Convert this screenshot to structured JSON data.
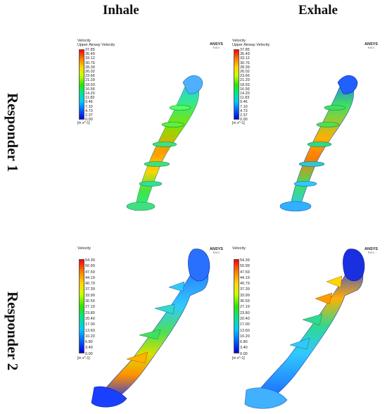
{
  "columns": {
    "left": "Inhale",
    "right": "Exhale"
  },
  "rows": {
    "top": "Responder 1",
    "bottom": "Responder 2"
  },
  "brand": {
    "name": "ANSYS",
    "version": "R15.0"
  },
  "responder1": {
    "legend_title": "Velocity",
    "legend_subtitle": "Upper Airway Velocity",
    "ticks": [
      "37.85",
      "35.49",
      "33.12",
      "30.76",
      "28.39",
      "26.02",
      "23.66",
      "21.29",
      "18.93",
      "16.56",
      "14.20",
      "11.83",
      "9.46",
      "7.10",
      "4.73",
      "2.37",
      "0.00"
    ],
    "unit": "[m s^-1]"
  },
  "responder2": {
    "legend_title": "Velocity",
    "ticks": [
      "54.39",
      "50.99",
      "47.59",
      "44.19",
      "40.79",
      "37.39",
      "33.99",
      "30.59",
      "27.19",
      "23.80",
      "20.40",
      "17.00",
      "13.60",
      "10.20",
      "6.80",
      "3.40",
      "0.00"
    ],
    "unit": "[m s^-1]"
  },
  "colors": {
    "colormap": [
      "#ff0000",
      "#ff7a00",
      "#ffd400",
      "#c8ff00",
      "#2ee600",
      "#00e68c",
      "#00c8ff",
      "#0060ff",
      "#0000e0"
    ]
  }
}
